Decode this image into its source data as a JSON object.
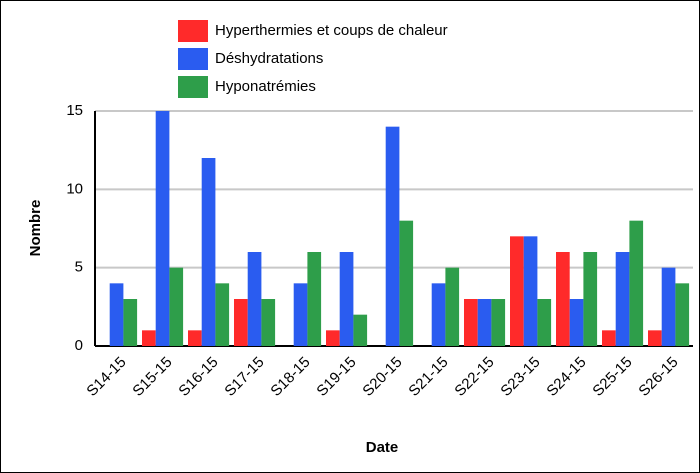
{
  "chart_data": {
    "type": "bar",
    "x_label": "Date",
    "y_label": "Nombre",
    "categories": [
      "S14-15",
      "S15-15",
      "S16-15",
      "S17-15",
      "S18-15",
      "S19-15",
      "S20-15",
      "S21-15",
      "S22-15",
      "S23-15",
      "S24-15",
      "S25-15",
      "S26-15"
    ],
    "series": [
      {
        "name": "Hyperthermies et coups de chaleur",
        "color": "#ff2a2a",
        "values": [
          0,
          1,
          1,
          3,
          0,
          1,
          0,
          0,
          3,
          7,
          6,
          1,
          1
        ]
      },
      {
        "name": "Déshydratations",
        "color": "#2a5cf0",
        "values": [
          4,
          15,
          12,
          6,
          4,
          6,
          14,
          4,
          3,
          7,
          3,
          6,
          5
        ]
      },
      {
        "name": "Hyponatrémies",
        "color": "#2e9e4a",
        "values": [
          3,
          5,
          4,
          3,
          6,
          2,
          8,
          5,
          3,
          3,
          6,
          8,
          4
        ]
      }
    ],
    "ylim": [
      0,
      15
    ],
    "yticks": [
      0,
      5,
      10,
      15
    ],
    "grid": true
  }
}
